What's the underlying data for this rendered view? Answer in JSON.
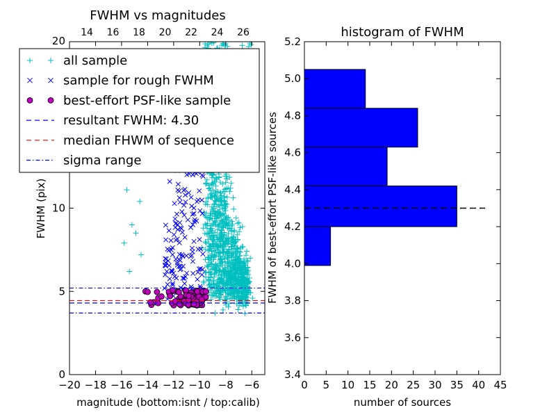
{
  "chart_data": [
    {
      "type": "scatter",
      "title": "FWHM vs magnitudes",
      "xlabel": "magnitude (bottom:isnt / top:calib)",
      "ylabel": "FWHM (pix)",
      "xlim": [
        -20,
        -5
      ],
      "ylim": [
        0,
        20
      ],
      "x_ticks": [
        "−20",
        "−18",
        "−16",
        "−14",
        "−12",
        "−10",
        "−8",
        "−6"
      ],
      "y_ticks": [
        "0",
        "5",
        "10"
      ],
      "top_axis": {
        "ticks": [
          "14",
          "16",
          "18",
          "20",
          "22",
          "24",
          "26"
        ],
        "top_label": "20"
      },
      "legend": {
        "placement": "upper-left",
        "entries": [
          {
            "label": "all sample",
            "marker": "+",
            "color": "#00bfbf"
          },
          {
            "label": "sample for rough FWHM",
            "marker": "x",
            "color": "#0000ff"
          },
          {
            "label": "best-effort PSF-like sample",
            "marker": "o",
            "color": "#bf00bf"
          },
          {
            "label": "resultant FWHM: 4.30",
            "line": "dashed",
            "color": "#0000ff"
          },
          {
            "label": "median FHWM of sequence",
            "line": "dashed",
            "color": "#ff0000"
          },
          {
            "label": "sigma range",
            "line": "dashdot",
            "color": "#0000ff"
          }
        ]
      },
      "hlines": {
        "resultant_fwhm": 4.3,
        "median_fwhm": 4.45,
        "sigma_range": [
          3.7,
          5.2
        ]
      },
      "series": [
        {
          "name": "all sample",
          "outliers": [
            [
              -15.8,
              7.9
            ],
            [
              -15.6,
              11.1
            ],
            [
              -15.2,
              9.0
            ],
            [
              -14.9,
              8.5
            ],
            [
              -14.6,
              10.4
            ],
            [
              -14.5,
              7.2
            ],
            [
              -15.4,
              6.2
            ],
            [
              -13.4,
              4.3
            ]
          ]
        },
        {
          "name": "sample for rough FWHM",
          "notable": [
            [
              -12.3,
              11.6
            ],
            [
              -11.8,
              9.1
            ],
            [
              -12.6,
              8.1
            ],
            [
              -11.3,
              7.1
            ],
            [
              -10.2,
              12.4
            ],
            [
              -11.6,
              6.5
            ]
          ]
        },
        {
          "name": "best-effort PSF-like sample",
          "x_range": [
            -14.5,
            -9.5
          ],
          "y_range": [
            4.15,
            5.1
          ]
        }
      ]
    },
    {
      "type": "bar",
      "orientation": "horizontal",
      "title": "histogram of FWHM",
      "xlabel": "number of sources",
      "ylabel": "FWHM of best-effort PSF-like sources",
      "xlim": [
        0,
        45
      ],
      "ylim": [
        3.4,
        5.2
      ],
      "x_ticks": [
        "0",
        "5",
        "10",
        "15",
        "20",
        "25",
        "30",
        "35",
        "40",
        "45"
      ],
      "y_ticks": [
        "3.4",
        "3.6",
        "3.8",
        "4.0",
        "4.2",
        "4.4",
        "4.6",
        "4.8",
        "5.0",
        "5.2"
      ],
      "bins": [
        {
          "low": 3.99,
          "high": 4.2,
          "count": 6
        },
        {
          "low": 4.2,
          "high": 4.42,
          "count": 35
        },
        {
          "low": 4.42,
          "high": 4.63,
          "count": 19
        },
        {
          "low": 4.63,
          "high": 4.84,
          "count": 26
        },
        {
          "low": 4.84,
          "high": 5.05,
          "count": 14
        }
      ],
      "bar_color": "#0000ff",
      "hline": 4.3
    }
  ]
}
